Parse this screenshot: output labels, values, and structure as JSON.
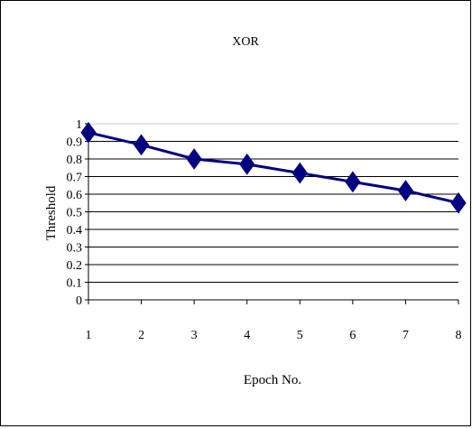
{
  "chart_data": {
    "type": "line",
    "title": "XOR",
    "xlabel": "Epoch No.",
    "ylabel": "Threshold",
    "x": [
      1,
      2,
      3,
      4,
      5,
      6,
      7,
      8
    ],
    "x_tick_labels": [
      "1",
      "2",
      "3",
      "4",
      "5",
      "6",
      "7",
      "8"
    ],
    "y_tick_labels": [
      "0",
      "0.1",
      "0.2",
      "0.3",
      "0.4",
      "0.5",
      "0.6",
      "0.7",
      "0.8",
      "0.9",
      "1"
    ],
    "ylim": [
      0,
      1
    ],
    "grid": true,
    "legend": "none",
    "series": [
      {
        "values": [
          0.95,
          0.88,
          0.8,
          0.77,
          0.72,
          0.67,
          0.62,
          0.55
        ],
        "color": "#000080",
        "marker": "diamond"
      }
    ]
  }
}
